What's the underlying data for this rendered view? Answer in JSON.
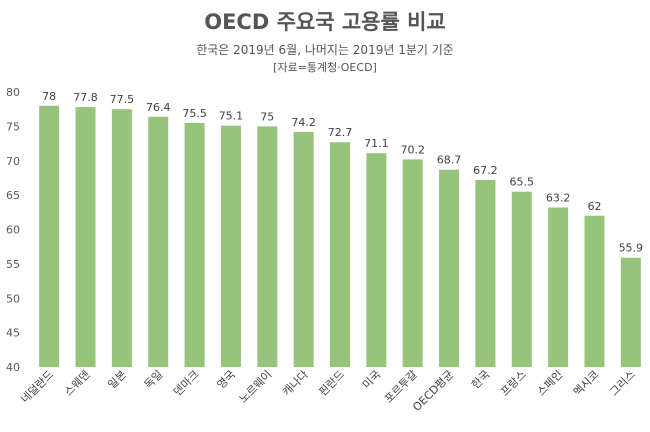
{
  "chart_data": {
    "type": "bar",
    "title": "OECD 주요국 고용률 비교",
    "subtitle": "한국은 2019년 6월, 나머지는 2019년 1분기 기준",
    "source": "[자료=통계청·OECD]",
    "categories": [
      "네덜란드",
      "스웨덴",
      "일본",
      "독일",
      "덴마크",
      "영국",
      "노르웨이",
      "캐나다",
      "핀란드",
      "미국",
      "포르투갈",
      "OECD평균",
      "한국",
      "프랑스",
      "스페인",
      "멕시코",
      "그리스"
    ],
    "values": [
      78,
      77.8,
      77.5,
      76.4,
      75.5,
      75.1,
      75,
      74.2,
      72.7,
      71.1,
      70.2,
      68.7,
      67.2,
      65.5,
      63.2,
      62,
      55.9
    ],
    "value_labels": [
      "78",
      "77.8",
      "77.5",
      "76.4",
      "75.5",
      "75.1",
      "75",
      "74.2",
      "72.7",
      "71.1",
      "70.2",
      "68.7",
      "67.2",
      "65.5",
      "63.2",
      "62",
      "55.9"
    ],
    "ylim": [
      40,
      80
    ],
    "yticks": [
      40,
      45,
      50,
      55,
      60,
      65,
      70,
      75,
      80
    ],
    "bar_color": "#97c47b",
    "grid": false,
    "xlabel": "",
    "ylabel": ""
  }
}
